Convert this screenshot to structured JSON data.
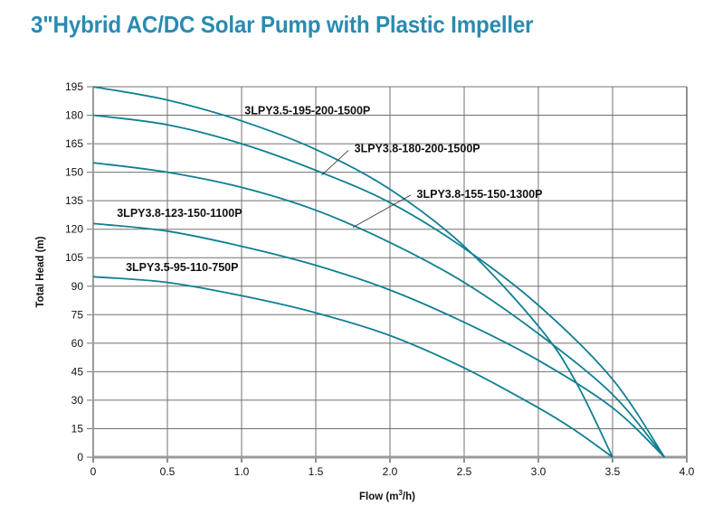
{
  "page": {
    "title": "3\"Hybrid AC/DC Solar Pump with Plastic Impeller"
  },
  "colors": {
    "title": "#2a8bb0",
    "curve": "#0f7f92",
    "grid": "#707070",
    "axis": "#9a9a9a",
    "leader": "#333333"
  },
  "chart_data": {
    "type": "line",
    "title": "3\"Hybrid AC/DC Solar Pump with Plastic Impeller",
    "xlabel_main": "Flow (m",
    "xlabel_sup": "3",
    "xlabel_end": "/h)",
    "ylabel": "Total Head (m)",
    "xlim": [
      0,
      4.0
    ],
    "ylim": [
      0,
      195
    ],
    "grid": true,
    "xticks": [
      {
        "value": 0,
        "label": "0"
      },
      {
        "value": 0.5,
        "label": "0.5"
      },
      {
        "value": 1.0,
        "label": "1.0"
      },
      {
        "value": 1.5,
        "label": "1.5"
      },
      {
        "value": 2.0,
        "label": "2.0"
      },
      {
        "value": 2.5,
        "label": "2.5"
      },
      {
        "value": 3.0,
        "label": "3.0"
      },
      {
        "value": 3.5,
        "label": "3.5"
      },
      {
        "value": 4.0,
        "label": "4.0"
      }
    ],
    "yticks": [
      {
        "value": 0,
        "label": "0"
      },
      {
        "value": 15,
        "label": "15"
      },
      {
        "value": 30,
        "label": "30"
      },
      {
        "value": 45,
        "label": "45"
      },
      {
        "value": 60,
        "label": "60"
      },
      {
        "value": 75,
        "label": "75"
      },
      {
        "value": 90,
        "label": "90"
      },
      {
        "value": 105,
        "label": "105"
      },
      {
        "value": 120,
        "label": "120"
      },
      {
        "value": 135,
        "label": "135"
      },
      {
        "value": 150,
        "label": "150"
      },
      {
        "value": 165,
        "label": "165"
      },
      {
        "value": 180,
        "label": "180"
      },
      {
        "value": 195,
        "label": "195"
      }
    ],
    "series": [
      {
        "name": "3LPY3.5-195-200-1500P",
        "x": [
          0,
          0.5,
          1.0,
          1.5,
          2.0,
          2.5,
          3.0,
          3.25,
          3.5
        ],
        "y": [
          195,
          188,
          177,
          162,
          141,
          111,
          69,
          40,
          0
        ],
        "label_anchor": {
          "x": 1.02,
          "y": 180.5
        },
        "leader": null
      },
      {
        "name": "3LPY3.8-180-200-1500P",
        "x": [
          0,
          0.5,
          1.0,
          1.5,
          2.0,
          2.5,
          3.0,
          3.5,
          3.85
        ],
        "y": [
          180,
          175,
          165,
          151,
          134,
          110,
          80,
          41,
          0
        ],
        "label_anchor": {
          "x": 1.76,
          "y": 160.5
        },
        "leader": {
          "from": {
            "x": 1.72,
            "y": 161.5
          },
          "to": {
            "x": 1.54,
            "y": 148.5
          }
        }
      },
      {
        "name": "3LPY3.8-155-150-1300P",
        "x": [
          0,
          0.5,
          1.0,
          1.5,
          2.0,
          2.5,
          3.0,
          3.5,
          3.85
        ],
        "y": [
          155,
          150,
          142,
          130,
          113,
          92,
          65,
          33,
          0
        ],
        "label_anchor": {
          "x": 2.18,
          "y": 136.5
        },
        "leader": {
          "from": {
            "x": 2.14,
            "y": 138.0
          },
          "to": {
            "x": 1.75,
            "y": 121.0
          }
        }
      },
      {
        "name": "3LPY3.8-123-150-1100P",
        "x": [
          0,
          0.5,
          1.0,
          1.5,
          2.0,
          2.5,
          3.0,
          3.5,
          3.85
        ],
        "y": [
          123,
          119,
          111,
          101,
          88,
          71,
          51,
          26,
          0
        ],
        "label_anchor": {
          "x": 0.16,
          "y": 126.5
        },
        "leader": null
      },
      {
        "name": "3LPY3.5-95-110-750P",
        "x": [
          0,
          0.5,
          1.0,
          1.5,
          2.0,
          2.5,
          3.0,
          3.25,
          3.5
        ],
        "y": [
          95,
          92,
          85,
          76,
          64,
          47,
          26,
          14,
          0
        ],
        "label_anchor": {
          "x": 0.22,
          "y": 98.0
        },
        "leader": null
      }
    ]
  }
}
